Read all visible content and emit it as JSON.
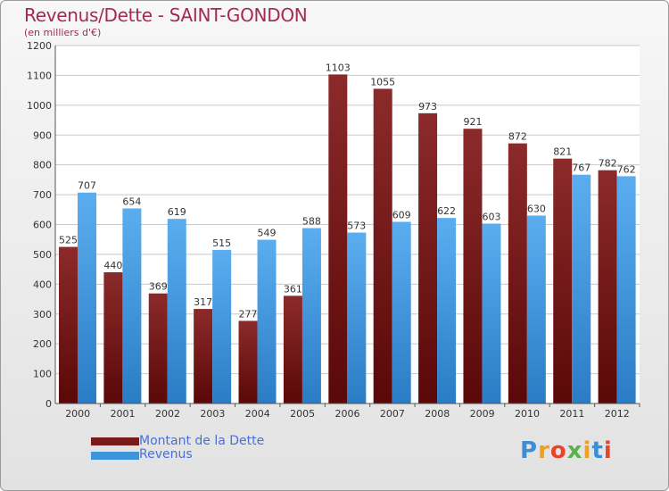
{
  "colors": {
    "dette": "#7a1a1a",
    "revenus": "#3d95da",
    "title": "#a32a57",
    "legend_text": "#4a6fd6"
  },
  "logo": {
    "text": "Proxiti"
  },
  "chart_data": {
    "type": "bar",
    "title": "Revenus/Dette - SAINT-GONDON",
    "subtitle": "(en milliers d'€)",
    "xlabel": "",
    "ylabel": "",
    "ylim": [
      0,
      1200
    ],
    "yticks": [
      0,
      100,
      200,
      300,
      400,
      500,
      600,
      700,
      800,
      900,
      1000,
      1100,
      1200
    ],
    "grid": true,
    "legend_position": "bottom-left",
    "categories": [
      "2000",
      "2001",
      "2002",
      "2003",
      "2004",
      "2005",
      "2006",
      "2007",
      "2008",
      "2009",
      "2010",
      "2011",
      "2012"
    ],
    "series": [
      {
        "name": "Montant de la Dette",
        "values": [
          525,
          440,
          369,
          317,
          277,
          361,
          1103,
          1055,
          973,
          921,
          872,
          821,
          782
        ]
      },
      {
        "name": "Revenus",
        "values": [
          707,
          654,
          619,
          515,
          549,
          588,
          573,
          609,
          622,
          603,
          630,
          767,
          762
        ]
      }
    ]
  }
}
